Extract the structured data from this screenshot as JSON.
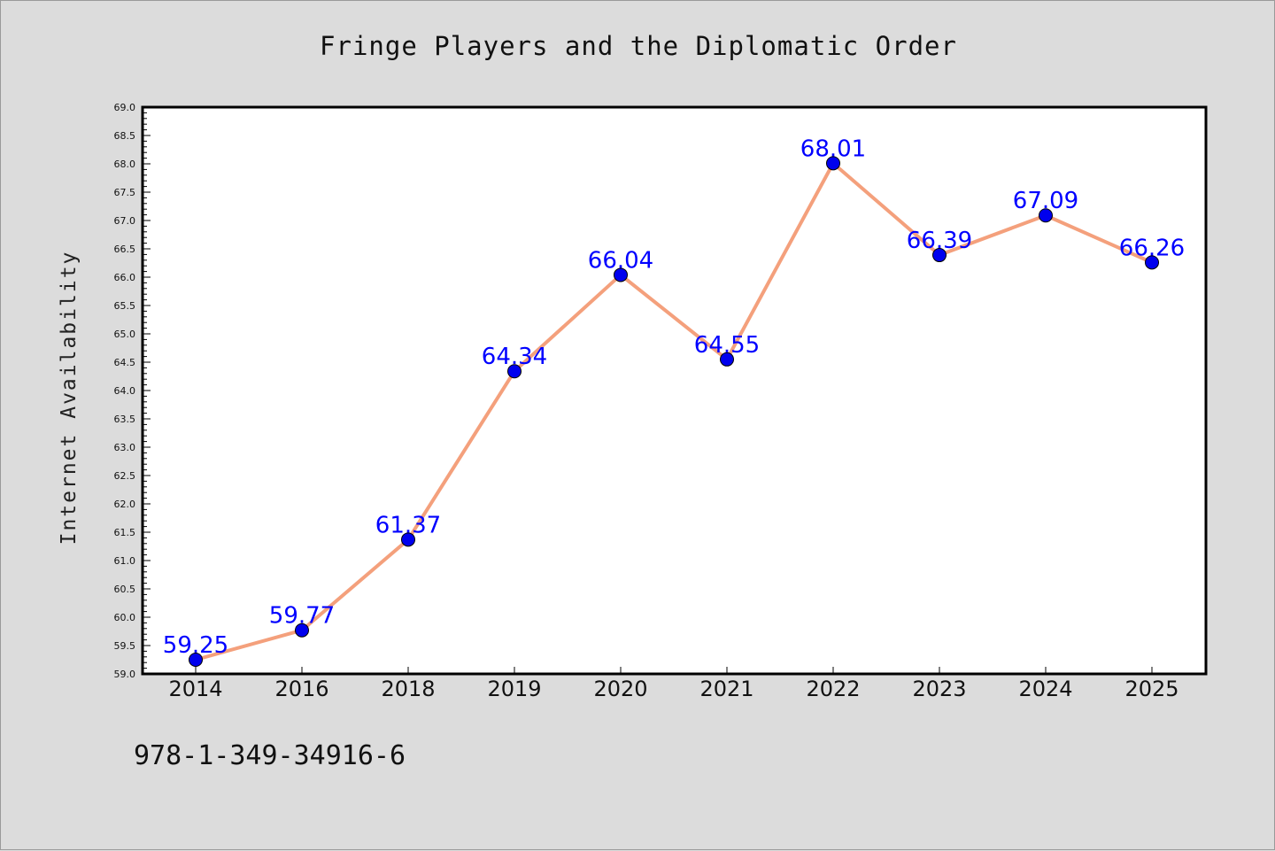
{
  "chart_data": {
    "type": "line",
    "title": "Fringe Players and the Diplomatic Order",
    "xlabel": "",
    "ylabel": "Internet Availability",
    "categories": [
      "2014",
      "2016",
      "2018",
      "2019",
      "2020",
      "2021",
      "2022",
      "2023",
      "2024",
      "2025"
    ],
    "series": [
      {
        "values": [
          59.25,
          59.77,
          61.37,
          64.34,
          66.04,
          64.55,
          68.01,
          66.39,
          67.09,
          66.26
        ],
        "data_labels": [
          "59.25",
          "59.77",
          "61.37",
          "64.34",
          "66.04",
          "64.55",
          "68.01",
          "66.39",
          "67.09",
          "66.26"
        ],
        "line_color": "#f4a07c",
        "marker_color": "#0000ee"
      }
    ],
    "ylim": [
      59.0,
      69.0
    ],
    "y_ticks": [
      "59.0",
      "59.5",
      "60.0",
      "60.5",
      "61.0",
      "61.5",
      "62.0",
      "62.5",
      "63.0",
      "63.5",
      "64.0",
      "64.5",
      "65.0",
      "65.5",
      "66.0",
      "66.5",
      "67.0",
      "67.5",
      "68.0",
      "68.5",
      "69.0"
    ],
    "grid": false,
    "legend": "none",
    "plot_background": "#ffffff",
    "figure_background": "#dcdcdc",
    "label_color": "#0000ff"
  },
  "footer": {
    "code": "978-1-349-34916-6"
  }
}
